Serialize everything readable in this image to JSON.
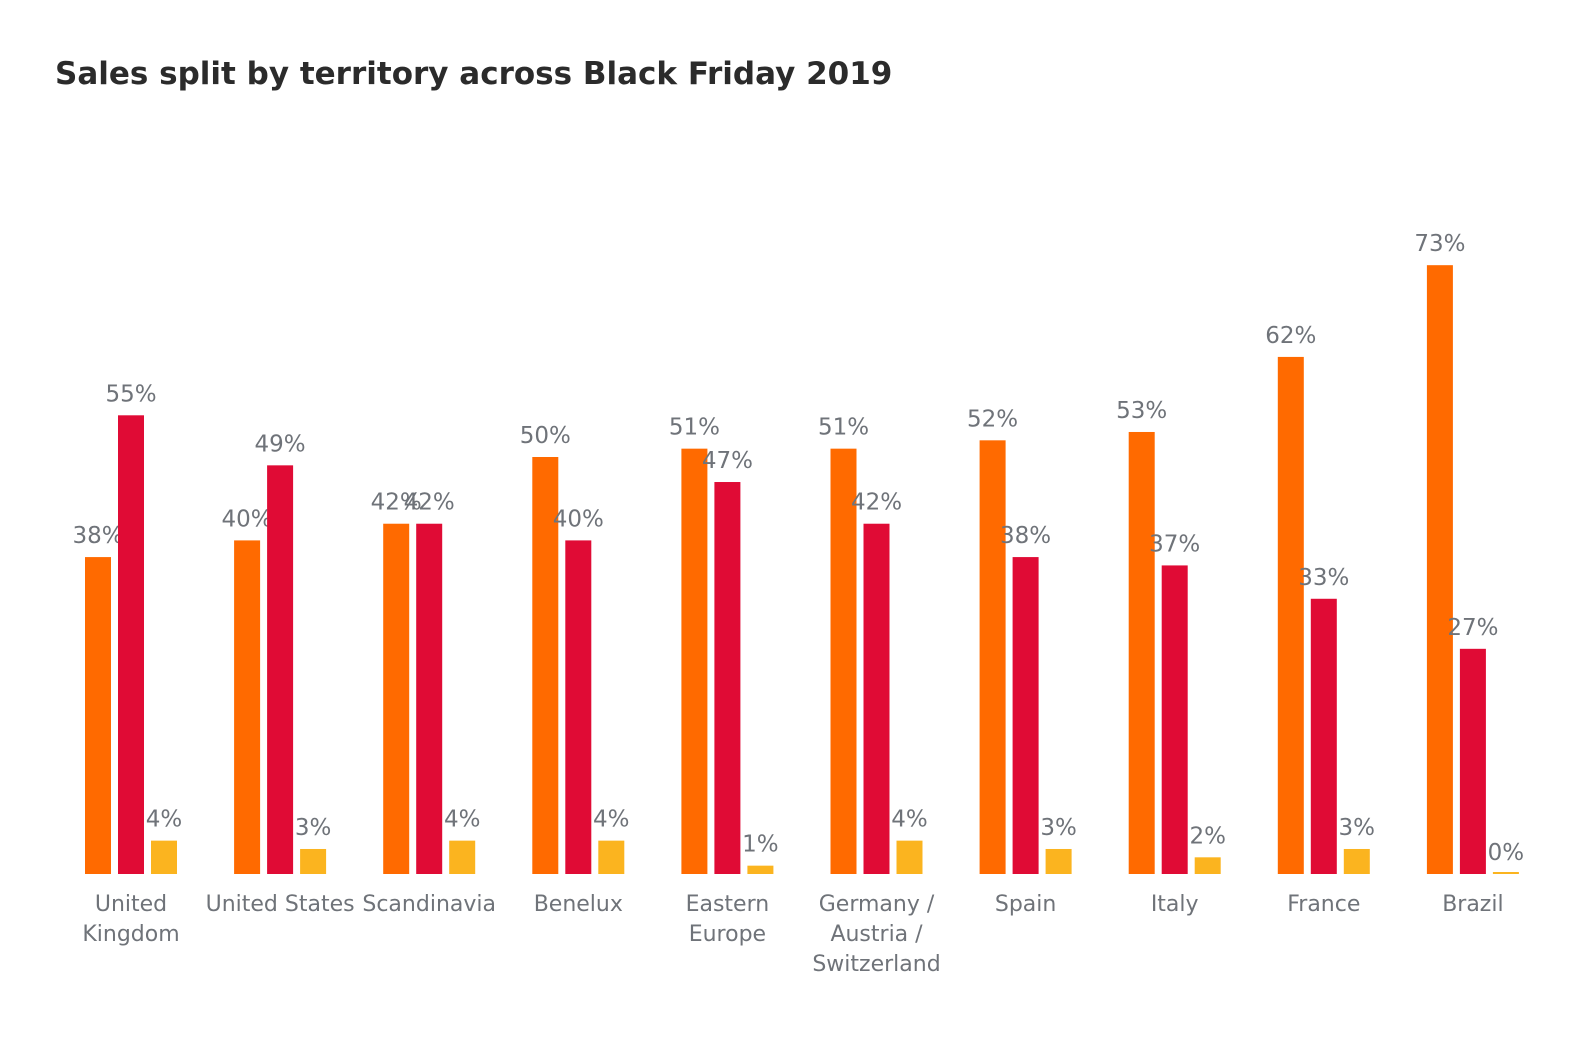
{
  "chart_data": {
    "type": "bar",
    "title": "Sales split by territory across Black Friday 2019",
    "categories": [
      "United\nKingdom",
      "United States",
      "Scandinavia",
      "Benelux",
      "Eastern\nEurope",
      "Germany /\nAustria /\nSwitzerland",
      "Spain",
      "Italy",
      "France",
      "Brazil"
    ],
    "series": [
      {
        "color": "#ff6a00",
        "values": [
          38,
          40,
          42,
          50,
          51,
          51,
          52,
          53,
          62,
          73
        ],
        "value_labels": [
          "38%",
          "40%",
          "42%",
          "50%",
          "51%",
          "51%",
          "52%",
          "53%",
          "62%",
          "73%"
        ]
      },
      {
        "color": "#e00b35",
        "values": [
          55,
          49,
          42,
          40,
          47,
          42,
          38,
          37,
          33,
          27
        ],
        "value_labels": [
          "55%",
          "49%",
          "42%",
          "40%",
          "47%",
          "42%",
          "38%",
          "37%",
          "33%",
          "27%"
        ]
      },
      {
        "color": "#fbb41f",
        "values": [
          4,
          3,
          4,
          4,
          1,
          4,
          3,
          2,
          3,
          0
        ],
        "value_labels": [
          "4%",
          "3%",
          "4%",
          "4%",
          "1%",
          "4%",
          "3%",
          "2%",
          "3%",
          "0%"
        ]
      }
    ]
  }
}
